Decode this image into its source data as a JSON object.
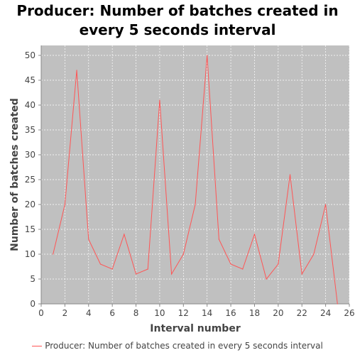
{
  "chart_data": {
    "type": "line",
    "title": "Producer: Number of batches created in every 5 seconds interval",
    "xlabel": "Interval number",
    "ylabel": "Number of batches created",
    "xlim": [
      0,
      26
    ],
    "ylim": [
      0,
      52
    ],
    "xticks": [
      0,
      2,
      4,
      6,
      8,
      10,
      12,
      14,
      16,
      18,
      20,
      22,
      24,
      26
    ],
    "yticks": [
      0,
      5,
      10,
      15,
      20,
      25,
      30,
      35,
      40,
      45,
      50
    ],
    "grid": true,
    "legend_position": "bottom",
    "colors": {
      "series": "#ff5555",
      "plot_background": "#c0c0c0",
      "grid": "#ffffff"
    },
    "series": [
      {
        "name": "Producer: Number of batches created in every 5 seconds interval",
        "x": [
          1,
          2,
          3,
          4,
          5,
          6,
          7,
          8,
          9,
          10,
          11,
          12,
          13,
          14,
          15,
          16,
          17,
          18,
          19,
          20,
          21,
          22,
          23,
          24,
          25
        ],
        "y": [
          10,
          20,
          47,
          13,
          8,
          7,
          14,
          6,
          7,
          41,
          6,
          10,
          20,
          50,
          13,
          8,
          7,
          14,
          5,
          8,
          26,
          6,
          10,
          20,
          0
        ]
      }
    ]
  }
}
